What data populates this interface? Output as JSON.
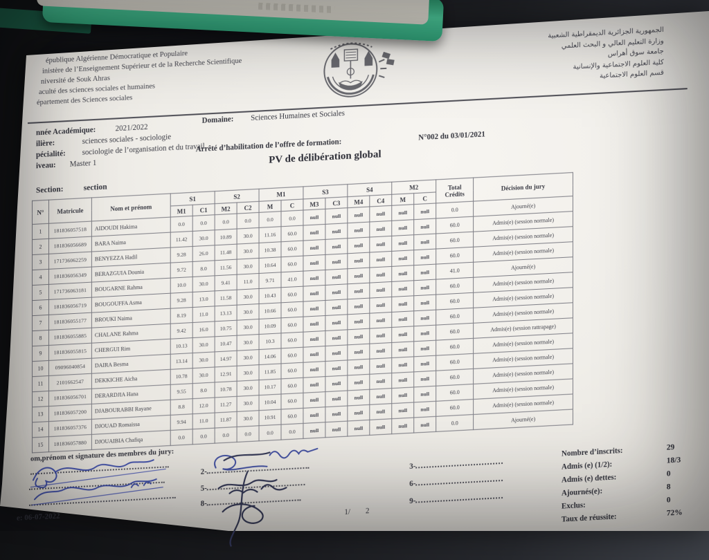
{
  "colors": {
    "paper": "#f2f0eb",
    "desk": "#202227",
    "ink": "#3a3b44",
    "blue_ink": "#3646a5",
    "dark_ink": "#2c3050",
    "object_green": "#3fbf8f"
  },
  "letterhead_fr": {
    "lines": [
      "épublique Algérienne Démocratique et Populaire",
      "inistère de l’Enseignement Supérieur et de la Recherche Scientifique",
      "niversité de Souk Ahras",
      "aculté des sciences sociales et humaines",
      "épartement des Sciences sociales"
    ]
  },
  "letterhead_ar": {
    "lines": [
      "الجمهورية الجزائرية الديمقراطية الشعبية",
      "وزارة التعليم العالي و البحث العلمي",
      "جامعة سوق أهراس",
      "كلية العلوم الاجتماعية والإنسانية",
      "قسم العلوم الاجتماعية"
    ]
  },
  "meta": {
    "domaine_label": "Domaine:",
    "domaine_value": "Sciences Humaines et Sociales",
    "annee_label": "nnée Académique:",
    "annee_value": "2021/2022",
    "filiere_label": "ilière:",
    "filiere_value": "sciences sociales - sociologie",
    "specialite_label": "pécialité:",
    "specialite_value": "sociologie de l’organisation et du travail",
    "arrete_label": "Arrêté d’habilitation de l’offre de formation:",
    "arrete_value": "N°002  du  03/01/2021",
    "niveau_label": "iveau:",
    "niveau_value": "Master 1",
    "title": "PV de délibération global",
    "section_label": "Section:",
    "section_value": "section"
  },
  "table": {
    "fixed_headers": [
      "N°",
      "Matricule",
      "Nom et prénom"
    ],
    "col_groups": [
      "S1",
      "S2",
      "M1",
      "S3",
      "S4",
      "M2"
    ],
    "sub_headers": [
      "M1",
      "C1",
      "M2",
      "C2",
      "M",
      "C",
      "M3",
      "C3",
      "M4",
      "C4",
      "M",
      "C"
    ],
    "total_header_lines": [
      "Total",
      "Crédits"
    ],
    "decision_header": "Décision du jury",
    "rows": [
      {
        "n": "1",
        "matricule": "181836057518",
        "name": "AIDOUDI Hakima",
        "scores": [
          "0.0",
          "0.0",
          "0.0",
          "0.0",
          "0.0",
          "0.0",
          "null",
          "null",
          "null",
          "null",
          "null",
          "null"
        ],
        "total": "0.0",
        "decision": "Ajourné(e)"
      },
      {
        "n": "2",
        "matricule": "181836056689",
        "name": "BARA Naima",
        "scores": [
          "11.42",
          "30.0",
          "10.89",
          "30.0",
          "11.16",
          "60.0",
          "null",
          "null",
          "null",
          "null",
          "null",
          "null"
        ],
        "total": "60.0",
        "decision": "Admis(e) (session normale)"
      },
      {
        "n": "3",
        "matricule": "171736062259",
        "name": "BENYEZZA Hadil",
        "scores": [
          "9.28",
          "26.0",
          "11.48",
          "30.0",
          "10.38",
          "60.0",
          "null",
          "null",
          "null",
          "null",
          "null",
          "null"
        ],
        "total": "60.0",
        "decision": "Admis(e) (session normale)"
      },
      {
        "n": "4",
        "matricule": "181836056349",
        "name": "BERAZGUIA Dounia",
        "scores": [
          "9.72",
          "8.0",
          "11.56",
          "30.0",
          "10.64",
          "60.0",
          "null",
          "null",
          "null",
          "null",
          "null",
          "null"
        ],
        "total": "60.0",
        "decision": "Admis(e) (session normale)"
      },
      {
        "n": "5",
        "matricule": "171736063181",
        "name": "BOUGARNE Rahma",
        "scores": [
          "10.0",
          "30.0",
          "9.41",
          "11.0",
          "9.71",
          "41.0",
          "null",
          "null",
          "null",
          "null",
          "null",
          "null"
        ],
        "total": "41.0",
        "decision": "Ajourné(e)"
      },
      {
        "n": "6",
        "matricule": "181836056719",
        "name": "BOUGOUFFA Asma",
        "scores": [
          "9.28",
          "13.0",
          "11.58",
          "30.0",
          "10.43",
          "60.0",
          "null",
          "null",
          "null",
          "null",
          "null",
          "null"
        ],
        "total": "60.0",
        "decision": "Admis(e) (session normale)"
      },
      {
        "n": "7",
        "matricule": "181836055177",
        "name": "BROUKI Naima",
        "scores": [
          "8.19",
          "11.0",
          "13.13",
          "30.0",
          "10.66",
          "60.0",
          "null",
          "null",
          "null",
          "null",
          "null",
          "null"
        ],
        "total": "60.0",
        "decision": "Admis(e) (session normale)"
      },
      {
        "n": "8",
        "matricule": "181836055885",
        "name": "CHALANE Rahma",
        "scores": [
          "9.42",
          "16.0",
          "10.75",
          "30.0",
          "10.09",
          "60.0",
          "null",
          "null",
          "null",
          "null",
          "null",
          "null"
        ],
        "total": "60.0",
        "decision": "Admis(e) (session normale)"
      },
      {
        "n": "9",
        "matricule": "181836055815",
        "name": "CHERGUI Rim",
        "scores": [
          "10.13",
          "30.0",
          "10.47",
          "30.0",
          "10.3",
          "60.0",
          "null",
          "null",
          "null",
          "null",
          "null",
          "null"
        ],
        "total": "60.0",
        "decision": "Admis(e) (session rattrapage)"
      },
      {
        "n": "10",
        "matricule": "09096040854",
        "name": "DAIRA Besma",
        "scores": [
          "13.14",
          "30.0",
          "14.97",
          "30.0",
          "14.06",
          "60.0",
          "null",
          "null",
          "null",
          "null",
          "null",
          "null"
        ],
        "total": "60.0",
        "decision": "Admis(e) (session normale)"
      },
      {
        "n": "11",
        "matricule": "2101662547",
        "name": "DEKKICHE Aicha",
        "scores": [
          "10.78",
          "30.0",
          "12.91",
          "30.0",
          "11.85",
          "60.0",
          "null",
          "null",
          "null",
          "null",
          "null",
          "null"
        ],
        "total": "60.0",
        "decision": "Admis(e) (session normale)"
      },
      {
        "n": "12",
        "matricule": "181836056701",
        "name": "DERARDJIA Hana",
        "scores": [
          "9.55",
          "8.0",
          "10.78",
          "30.0",
          "10.17",
          "60.0",
          "null",
          "null",
          "null",
          "null",
          "null",
          "null"
        ],
        "total": "60.0",
        "decision": "Admis(e) (session normale)"
      },
      {
        "n": "13",
        "matricule": "181836057200",
        "name": "DJABOURABBI Rayane",
        "scores": [
          "8.8",
          "12.0",
          "11.27",
          "30.0",
          "10.04",
          "60.0",
          "null",
          "null",
          "null",
          "null",
          "null",
          "null"
        ],
        "total": "60.0",
        "decision": "Admis(e) (session normale)"
      },
      {
        "n": "14",
        "matricule": "181836057376",
        "name": "DJOUAD Romaissa",
        "scores": [
          "9.94",
          "11.0",
          "11.87",
          "30.0",
          "10.91",
          "60.0",
          "null",
          "null",
          "null",
          "null",
          "null",
          "null"
        ],
        "total": "60.0",
        "decision": "Admis(e) (session normale)"
      },
      {
        "n": "15",
        "matricule": "181836057880",
        "name": "DJOUAIBIA Chafiqa",
        "scores": [
          "0.0",
          "0.0",
          "0.0",
          "0.0",
          "0.0",
          "0.0",
          "null",
          "null",
          "null",
          "null",
          "null",
          "null"
        ],
        "total": "0.0",
        "decision": "Ajourné(e)"
      }
    ]
  },
  "footer": {
    "jury_label": "om,prénom et signature des membres du jury:",
    "slots_mid": [
      "2-",
      "5-",
      "8-"
    ],
    "slots_right": [
      "3-",
      "6-",
      "9-"
    ],
    "page1": "1/",
    "page2": "2",
    "date": "e: 06-07-2022",
    "stats": [
      {
        "label": "Nombre d’inscrits:",
        "value": "29"
      },
      {
        "label": "Admis (e) (1/2):",
        "value": "18/3"
      },
      {
        "label": "Admis (e) dettes:",
        "value": "0"
      },
      {
        "label": "Ajournés(e):",
        "value": "8"
      },
      {
        "label": "Exclus:",
        "value": "0"
      },
      {
        "label": "Taux de réussite:",
        "value": "72%"
      }
    ]
  }
}
